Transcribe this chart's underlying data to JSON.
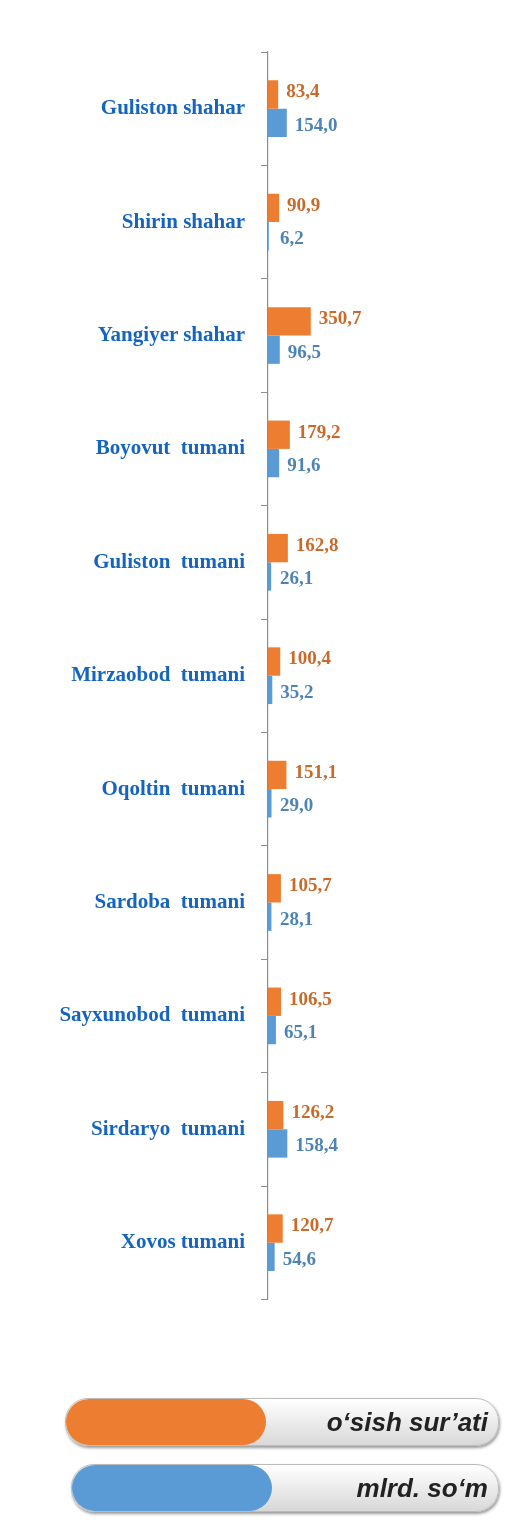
{
  "chart_data": {
    "type": "bar",
    "orientation": "horizontal",
    "legend": "bottom right",
    "categories": [
      "Guliston shahar",
      "Shirin shahar",
      "Yangiyer shahar",
      "Boyovut  tumani",
      "Guliston  tumani",
      "Mirzaobod  tumani",
      "Oqoltin  tumani",
      "Sardoba  tumani",
      "Sayxunobod  tumani",
      "Sirdaryo  tumani",
      "Xovos tumani"
    ],
    "series": [
      {
        "name": "o‘sish sur’ati",
        "color": "#ed7d31",
        "values": [
          83.4,
          90.9,
          350.7,
          179.2,
          162.8,
          100.4,
          151.1,
          105.7,
          106.5,
          126.2,
          120.7
        ],
        "value_labels": [
          "83,4",
          "90,9",
          "350,7",
          "179,2",
          "162,8",
          "100,4",
          "151,1",
          "105,7",
          "106,5",
          "126,2",
          "120,7"
        ]
      },
      {
        "name": "mlrd. so‘m",
        "color": "#5b9bd5",
        "values": [
          154.0,
          6.2,
          96.5,
          91.6,
          26.1,
          35.2,
          29.0,
          28.1,
          65.1,
          158.4,
          54.6
        ],
        "value_labels": [
          "154,0",
          "6,2",
          "96,5",
          "91,6",
          "26,1",
          "35,2",
          "29,0",
          "28,1",
          "65,1",
          "158,4",
          "54,6"
        ]
      }
    ]
  }
}
